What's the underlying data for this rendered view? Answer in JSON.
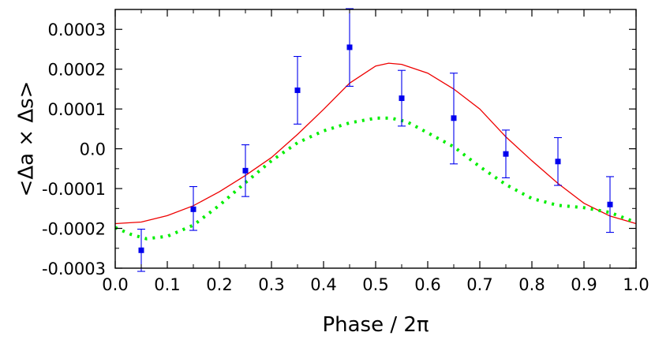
{
  "chart_data": {
    "type": "scatter",
    "title": "",
    "xlabel": "Phase / 2π",
    "ylabel": "<Δa × Δs>",
    "xlim": [
      0.0,
      1.0
    ],
    "ylim": [
      -0.0003,
      0.00035
    ],
    "grid": false,
    "legend": "none",
    "x_ticks": [
      "0.0",
      "0.1",
      "0.2",
      "0.3",
      "0.4",
      "0.5",
      "0.6",
      "0.7",
      "0.8",
      "0.9",
      "1.0"
    ],
    "x_tick_values": [
      0.0,
      0.1,
      0.2,
      0.3,
      0.4,
      0.5,
      0.6,
      0.7,
      0.8,
      0.9,
      1.0
    ],
    "y_ticks": [
      "-0.0003",
      "-0.0002",
      "-0.0001",
      "0.0",
      "0.0001",
      "0.0002",
      "0.0003"
    ],
    "y_tick_values": [
      -0.0003,
      -0.0002,
      -0.0001,
      0.0,
      0.0001,
      0.0002,
      0.0003
    ],
    "series": [
      {
        "kind": "points_with_errorbars",
        "color": "#0000ee",
        "x": [
          0.05,
          0.15,
          0.25,
          0.35,
          0.45,
          0.55,
          0.65,
          0.75,
          0.85,
          0.95
        ],
        "y": [
          -0.000255,
          -0.000152,
          -5.5e-05,
          0.000147,
          0.000255,
          0.000127,
          7.7e-05,
          -1.3e-05,
          -3.2e-05,
          -0.00014
        ],
        "yerr_low": [
          5.3e-05,
          5.3e-05,
          6.5e-05,
          8.5e-05,
          9.8e-05,
          7e-05,
          0.000115,
          6e-05,
          6e-05,
          7e-05
        ],
        "yerr_high": [
          5.3e-05,
          5.7e-05,
          6.5e-05,
          8.5e-05,
          9.7e-05,
          7e-05,
          0.000113,
          6e-05,
          6e-05,
          7e-05
        ]
      },
      {
        "kind": "line",
        "style": "solid",
        "color": "#ee0000",
        "x": [
          0.0,
          0.05,
          0.1,
          0.15,
          0.2,
          0.25,
          0.3,
          0.35,
          0.4,
          0.45,
          0.5,
          0.525,
          0.55,
          0.6,
          0.65,
          0.7,
          0.75,
          0.8,
          0.85,
          0.9,
          0.95,
          1.0
        ],
        "y": [
          -0.000188,
          -0.000184,
          -0.000168,
          -0.000143,
          -0.000108,
          -6.7e-05,
          -2.2e-05,
          3.6e-05,
          9.9e-05,
          0.000165,
          0.000208,
          0.000215,
          0.000212,
          0.00019,
          0.00015,
          0.0001,
          3e-05,
          -3e-05,
          -8.7e-05,
          -0.000137,
          -0.000169,
          -0.000188
        ]
      },
      {
        "kind": "line",
        "style": "dotted",
        "color": "#00ee00",
        "x": [
          0.0,
          0.03,
          0.06,
          0.1,
          0.15,
          0.2,
          0.25,
          0.3,
          0.35,
          0.4,
          0.45,
          0.5,
          0.53,
          0.56,
          0.6,
          0.65,
          0.7,
          0.75,
          0.8,
          0.85,
          0.9,
          0.95,
          1.0
        ],
        "y": [
          -0.000198,
          -0.000215,
          -0.000226,
          -0.00022,
          -0.000192,
          -0.000142,
          -8.5e-05,
          -3e-05,
          1.5e-05,
          4.5e-05,
          6.5e-05,
          7.7e-05,
          7.7e-05,
          6.8e-05,
          4e-05,
          5e-06,
          -4.5e-05,
          -9e-05,
          -0.000125,
          -0.000142,
          -0.000148,
          -0.00016,
          -0.000185
        ]
      }
    ]
  }
}
